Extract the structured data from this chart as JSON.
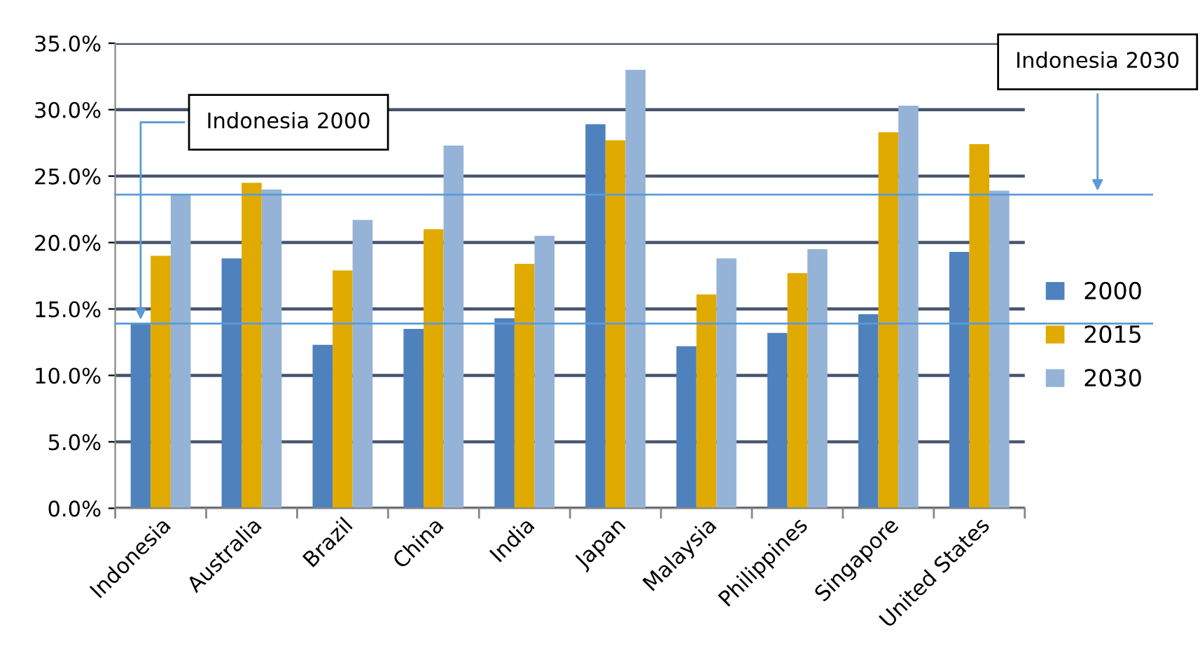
{
  "chart_data": {
    "type": "bar",
    "categories": [
      "Indonesia",
      "Australia",
      "Brazil",
      "China",
      "India",
      "Japan",
      "Malaysia",
      "Philippines",
      "Singapore",
      "United States"
    ],
    "series": [
      {
        "name": "2000",
        "color": "#4f81bd",
        "values": [
          13.9,
          18.8,
          12.3,
          13.5,
          14.3,
          28.9,
          12.2,
          13.2,
          14.6,
          19.3
        ]
      },
      {
        "name": "2015",
        "color": "#e0aa00",
        "values": [
          19.0,
          24.5,
          17.9,
          21.0,
          18.4,
          27.7,
          16.1,
          17.7,
          28.3,
          27.4
        ]
      },
      {
        "name": "2030",
        "color": "#95b3d7",
        "values": [
          23.6,
          24.0,
          21.7,
          27.3,
          20.5,
          33.0,
          18.8,
          19.5,
          30.3,
          23.9
        ]
      }
    ],
    "ylim": [
      0,
      35
    ],
    "yticks": [
      {
        "value": 0,
        "label": "0.0%"
      },
      {
        "value": 5,
        "label": "5.0%"
      },
      {
        "value": 10,
        "label": "10.0%"
      },
      {
        "value": 15,
        "label": "15.0%"
      },
      {
        "value": 20,
        "label": "20.0%"
      },
      {
        "value": 25,
        "label": "25.0%"
      },
      {
        "value": 30,
        "label": "30.0%"
      },
      {
        "value": 35,
        "label": "35.0%"
      }
    ],
    "ref_lines": [
      {
        "axis": "y",
        "value": 13.9,
        "label": "Indonesia 2000",
        "color": "#5b9bd5"
      },
      {
        "axis": "y",
        "value": 23.6,
        "label": "Indonesia 2030",
        "color": "#5b9bd5"
      }
    ],
    "grid": "y",
    "legend": "right"
  }
}
